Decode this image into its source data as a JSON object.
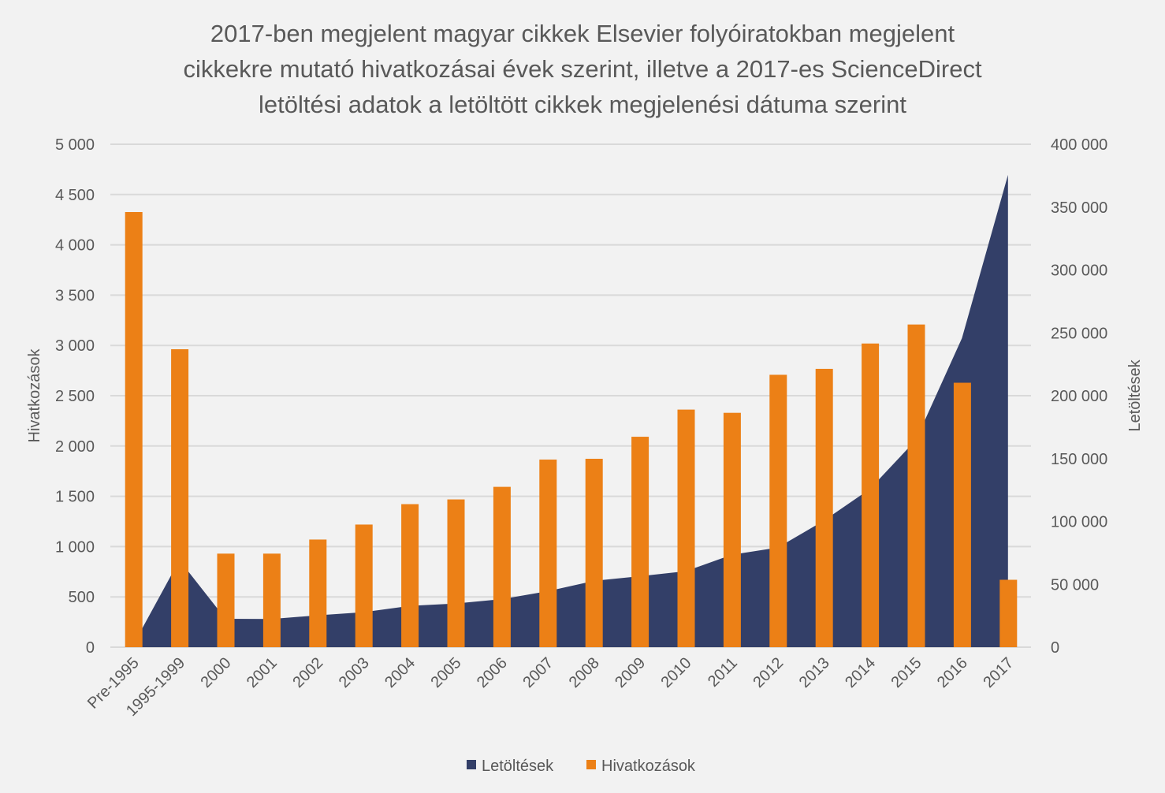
{
  "chart_data": {
    "type": "bar+area",
    "title_lines": [
      "2017-ben megjelent magyar cikkek Elsevier folyóiratokban megjelent",
      "cikkekre mutató hivatkozásai évek szerint, illetve a 2017-es ScienceDirect",
      "letöltési adatok a letöltött cikkek megjelenési dátuma szerint"
    ],
    "categories": [
      "Pre-1995",
      "1995-1999",
      "2000",
      "2001",
      "2002",
      "2003",
      "2004",
      "2005",
      "2006",
      "2007",
      "2008",
      "2009",
      "2010",
      "2011",
      "2012",
      "2013",
      "2014",
      "2015",
      "2016",
      "2017"
    ],
    "series": [
      {
        "name": "Letöltések",
        "type": "area",
        "axis": "right",
        "color": "#333f68",
        "values": [
          2000,
          69200,
          22600,
          22400,
          25300,
          27800,
          32800,
          34700,
          38200,
          44500,
          52700,
          56400,
          60400,
          73500,
          79200,
          100600,
          125800,
          164800,
          245800,
          375600
        ]
      },
      {
        "name": "Hivatkozások",
        "type": "bar",
        "axis": "left",
        "color": "#ec8016",
        "values": [
          4326,
          2962,
          930,
          930,
          1070,
          1219,
          1422,
          1469,
          1594,
          1865,
          1873,
          2092,
          2362,
          2330,
          2708,
          2767,
          3019,
          3208,
          2629,
          670
        ]
      }
    ],
    "y_left": {
      "label": "Hivatkozások",
      "range": [
        0,
        5000
      ],
      "ticks": [
        "0",
        "500",
        "1 000",
        "1 500",
        "2 000",
        "2 500",
        "3 000",
        "3 500",
        "4 000",
        "4 500",
        "5 000"
      ]
    },
    "y_right": {
      "label": "Letöltések",
      "range": [
        0,
        400000
      ],
      "ticks": [
        "0",
        "50 000",
        "100 000",
        "150 000",
        "200 000",
        "250 000",
        "300 000",
        "350 000",
        "400 000"
      ]
    },
    "grid": true,
    "legend_position": "bottom",
    "legend": [
      "Letöltések",
      "Hivatkozások"
    ],
    "background": "#f2f2f2"
  }
}
